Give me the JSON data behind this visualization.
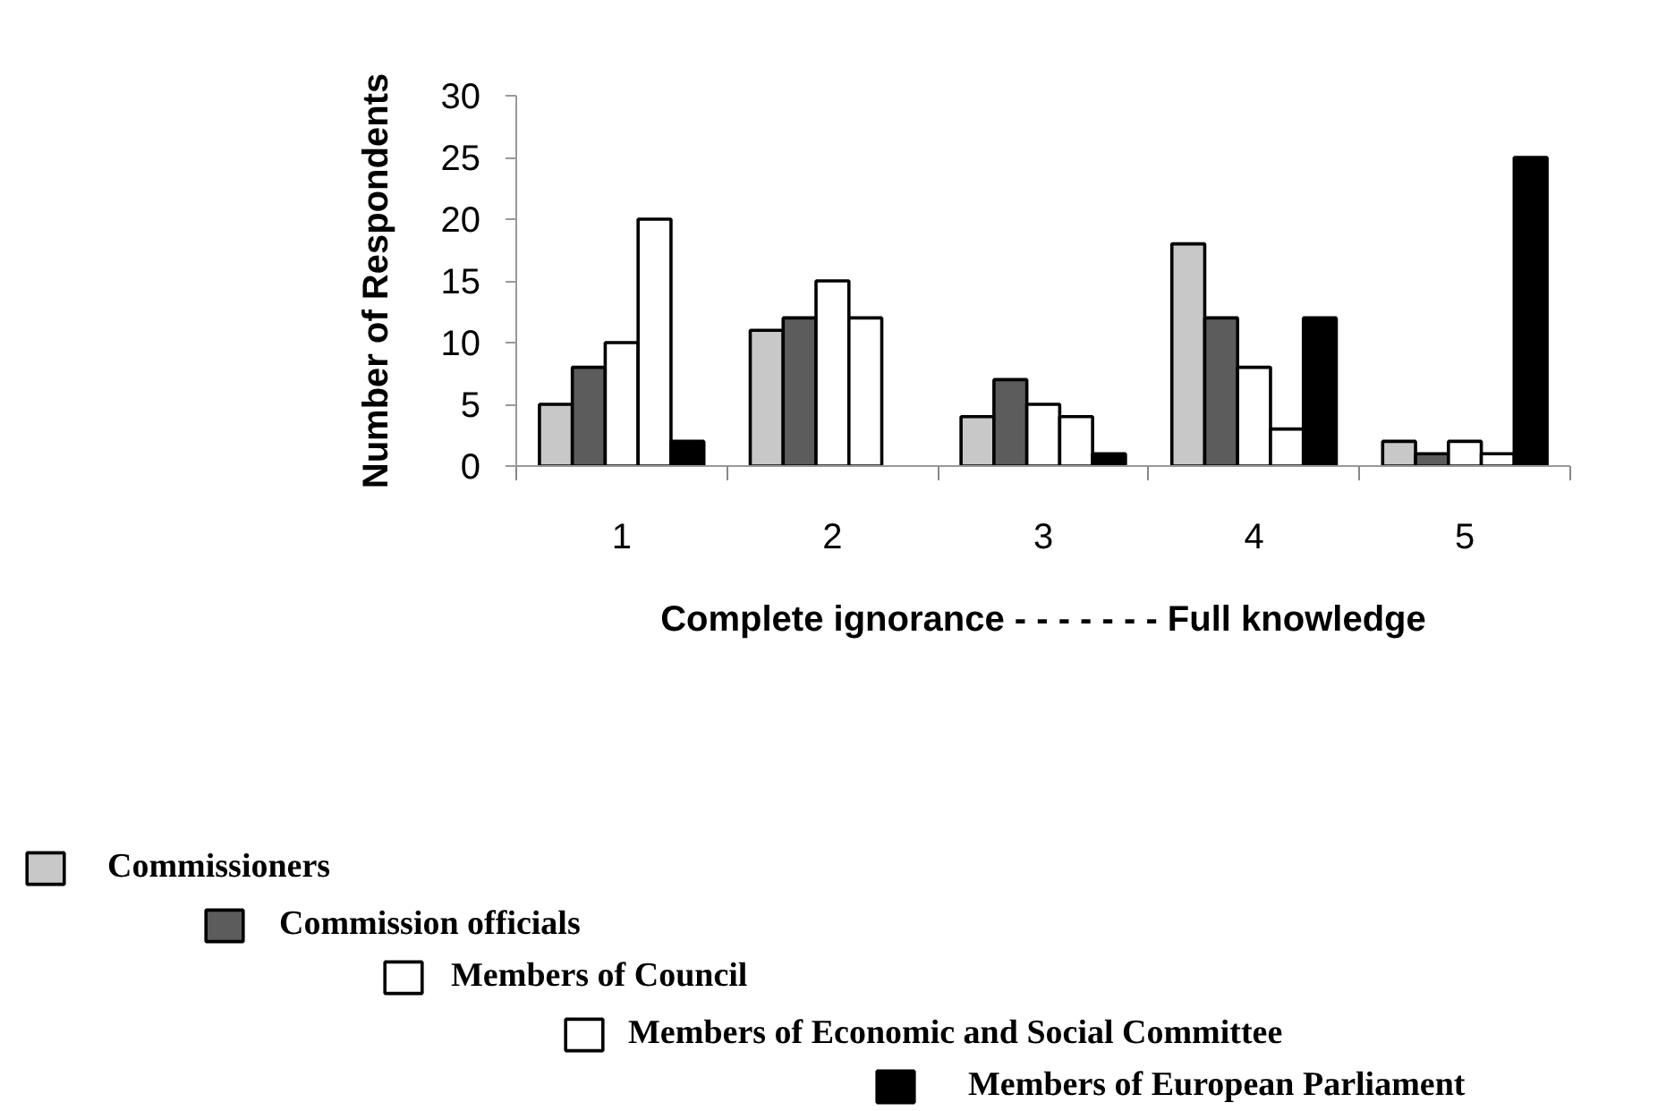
{
  "chart_data": {
    "type": "bar",
    "xlabel": "Complete ignorance - - - - - - - Full knowledge",
    "ylabel": "Number of Respondents",
    "categories": [
      "1",
      "2",
      "3",
      "4",
      "5"
    ],
    "series": [
      {
        "name": "Commissioners",
        "color": "#c8c8c8",
        "values": [
          5,
          11,
          4,
          18,
          2
        ]
      },
      {
        "name": "Commission officials",
        "color": "#5c5c5c",
        "values": [
          8,
          12,
          7,
          12,
          1
        ]
      },
      {
        "name": "Members of Council",
        "color": "#ffffff",
        "values": [
          10,
          15,
          5,
          8,
          2
        ]
      },
      {
        "name": "Members of Economic and Social Committee",
        "color": "#ffffff",
        "values": [
          20,
          12,
          4,
          3,
          1
        ]
      },
      {
        "name": "Members of European Parliament",
        "color": "#000000",
        "values": [
          2,
          null,
          1,
          12,
          25
        ]
      }
    ],
    "ylim": [
      0,
      30
    ],
    "yticks": [
      0,
      5,
      10,
      15,
      20,
      25,
      30
    ],
    "legend": "bottom"
  }
}
